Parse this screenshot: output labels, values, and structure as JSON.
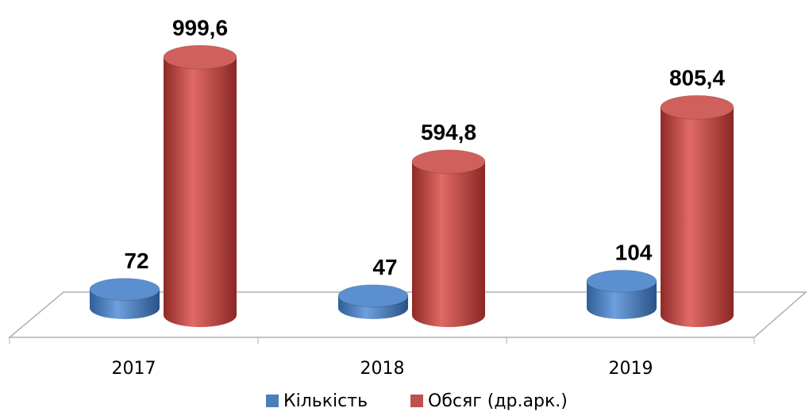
{
  "chart_data": {
    "type": "cylinder-bar",
    "categories": [
      "2017",
      "2018",
      "2019"
    ],
    "series": [
      {
        "name": "Кількість",
        "color": "#4a7ebb",
        "values": [
          72,
          47,
          104
        ]
      },
      {
        "name": "Обсяг (др.арк.)",
        "color": "#c0504d",
        "values": [
          999.6,
          594.8,
          805.4
        ],
        "value_labels": [
          "999,6",
          "594,8",
          "805,4"
        ]
      }
    ]
  }
}
